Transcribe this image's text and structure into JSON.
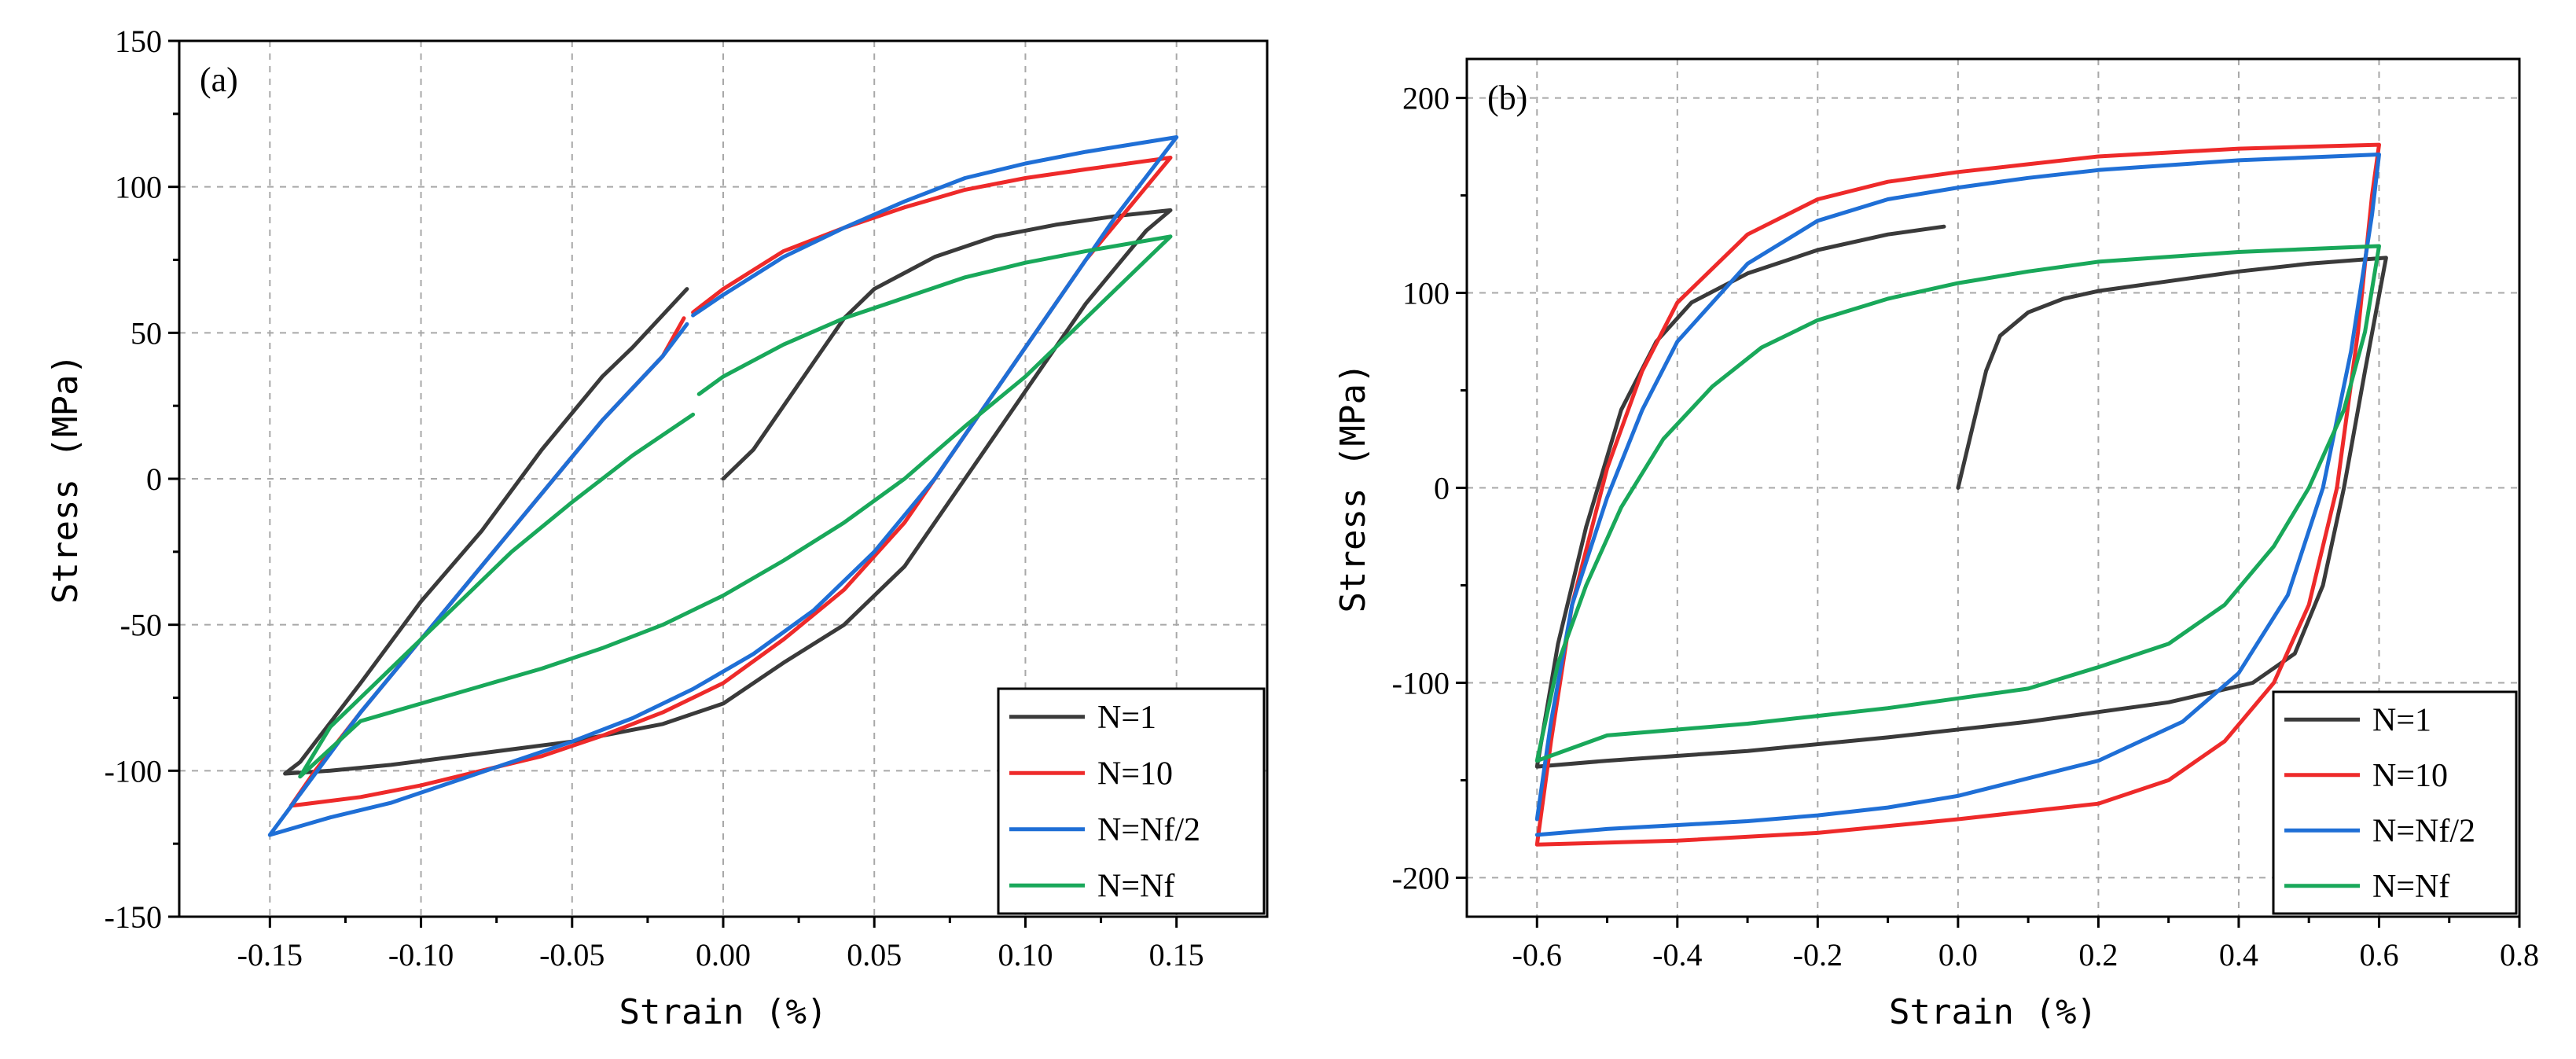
{
  "chart_data": [
    {
      "type": "line",
      "panel_label": "(a)",
      "xlabel": "Strain (%)",
      "ylabel": "Stress (MPa)",
      "xlim": [
        -0.18,
        0.18
      ],
      "ylim": [
        -150,
        150
      ],
      "xticks": [
        -0.15,
        -0.1,
        -0.05,
        0.0,
        0.05,
        0.1,
        0.15
      ],
      "xtick_labels": [
        "-0.15",
        "-0.10",
        "-0.05",
        "0.00",
        "0.05",
        "0.10",
        "0.15"
      ],
      "yticks": [
        -150,
        -100,
        -50,
        0,
        50,
        100,
        150
      ],
      "ytick_labels": [
        "-150",
        "-100",
        "-50",
        "0",
        "50",
        "100",
        "150"
      ],
      "grid": true,
      "legend_position": "bottom-right",
      "series": [
        {
          "name": "N=1",
          "color": "#3a3a3a",
          "points": [
            [
              0.0,
              0
            ],
            [
              0.01,
              10
            ],
            [
              0.02,
              25
            ],
            [
              0.03,
              40
            ],
            [
              0.04,
              55
            ],
            [
              0.05,
              65
            ],
            [
              0.07,
              76
            ],
            [
              0.09,
              83
            ],
            [
              0.11,
              87
            ],
            [
              0.13,
              90
            ],
            [
              0.148,
              92
            ],
            [
              0.14,
              85
            ],
            [
              0.12,
              60
            ],
            [
              0.1,
              30
            ],
            [
              0.08,
              0
            ],
            [
              0.06,
              -30
            ],
            [
              0.04,
              -50
            ],
            [
              0.02,
              -63
            ],
            [
              0.0,
              -77
            ],
            [
              -0.02,
              -84
            ],
            [
              -0.05,
              -90
            ],
            [
              -0.08,
              -94
            ],
            [
              -0.11,
              -98
            ],
            [
              -0.13,
              -100
            ],
            [
              -0.145,
              -101
            ],
            [
              -0.14,
              -97
            ],
            [
              -0.12,
              -70
            ],
            [
              -0.1,
              -42
            ],
            [
              -0.08,
              -18
            ],
            [
              -0.06,
              10
            ],
            [
              -0.04,
              35
            ],
            [
              -0.03,
              45
            ],
            [
              -0.012,
              65
            ]
          ]
        },
        {
          "name": "N=10",
          "color": "#ee2a2a",
          "points": [
            [
              -0.01,
              57
            ],
            [
              0.0,
              65
            ],
            [
              0.02,
              78
            ],
            [
              0.04,
              86
            ],
            [
              0.06,
              93
            ],
            [
              0.08,
              99
            ],
            [
              0.1,
              103
            ],
            [
              0.12,
              106
            ],
            [
              0.148,
              110
            ],
            [
              0.14,
              100
            ],
            [
              0.12,
              75
            ],
            [
              0.1,
              45
            ],
            [
              0.08,
              15
            ],
            [
              0.06,
              -15
            ],
            [
              0.04,
              -38
            ],
            [
              0.02,
              -55
            ],
            [
              0.0,
              -70
            ],
            [
              -0.02,
              -80
            ],
            [
              -0.04,
              -88
            ],
            [
              -0.06,
              -95
            ],
            [
              -0.08,
              -100
            ],
            [
              -0.1,
              -105
            ],
            [
              -0.12,
              -109
            ],
            [
              -0.143,
              -112
            ],
            [
              -0.135,
              -100
            ],
            [
              -0.12,
              -80
            ],
            [
              -0.1,
              -55
            ],
            [
              -0.08,
              -30
            ],
            [
              -0.06,
              -5
            ],
            [
              -0.04,
              20
            ],
            [
              -0.02,
              42
            ],
            [
              -0.013,
              55
            ]
          ]
        },
        {
          "name": "N=Nf/2",
          "color": "#1f6fd6",
          "points": [
            [
              -0.01,
              56
            ],
            [
              0.0,
              63
            ],
            [
              0.02,
              76
            ],
            [
              0.04,
              86
            ],
            [
              0.06,
              95
            ],
            [
              0.08,
              103
            ],
            [
              0.1,
              108
            ],
            [
              0.12,
              112
            ],
            [
              0.15,
              117
            ],
            [
              0.13,
              90
            ],
            [
              0.11,
              60
            ],
            [
              0.09,
              30
            ],
            [
              0.07,
              0
            ],
            [
              0.05,
              -25
            ],
            [
              0.03,
              -45
            ],
            [
              0.01,
              -60
            ],
            [
              -0.01,
              -72
            ],
            [
              -0.03,
              -82
            ],
            [
              -0.05,
              -90
            ],
            [
              -0.07,
              -97
            ],
            [
              -0.09,
              -104
            ],
            [
              -0.11,
              -111
            ],
            [
              -0.13,
              -116
            ],
            [
              -0.15,
              -122
            ],
            [
              -0.14,
              -108
            ],
            [
              -0.12,
              -80
            ],
            [
              -0.1,
              -55
            ],
            [
              -0.08,
              -30
            ],
            [
              -0.06,
              -5
            ],
            [
              -0.04,
              20
            ],
            [
              -0.02,
              42
            ],
            [
              -0.012,
              53
            ]
          ]
        },
        {
          "name": "N=Nf",
          "color": "#19a85a",
          "points": [
            [
              -0.008,
              29
            ],
            [
              0.0,
              35
            ],
            [
              0.02,
              46
            ],
            [
              0.04,
              55
            ],
            [
              0.06,
              62
            ],
            [
              0.08,
              69
            ],
            [
              0.1,
              74
            ],
            [
              0.12,
              78
            ],
            [
              0.148,
              83
            ],
            [
              0.14,
              75
            ],
            [
              0.12,
              55
            ],
            [
              0.1,
              35
            ],
            [
              0.08,
              18
            ],
            [
              0.06,
              0
            ],
            [
              0.04,
              -15
            ],
            [
              0.02,
              -28
            ],
            [
              0.0,
              -40
            ],
            [
              -0.02,
              -50
            ],
            [
              -0.04,
              -58
            ],
            [
              -0.06,
              -65
            ],
            [
              -0.08,
              -71
            ],
            [
              -0.1,
              -77
            ],
            [
              -0.12,
              -83
            ],
            [
              -0.14,
              -102
            ],
            [
              -0.13,
              -85
            ],
            [
              -0.11,
              -65
            ],
            [
              -0.09,
              -45
            ],
            [
              -0.07,
              -25
            ],
            [
              -0.05,
              -8
            ],
            [
              -0.03,
              8
            ],
            [
              -0.01,
              22
            ]
          ]
        }
      ]
    },
    {
      "type": "line",
      "panel_label": "(b)",
      "xlabel": "Strain (%)",
      "ylabel": "Stress (MPa)",
      "xlim": [
        -0.7,
        0.8
      ],
      "ylim": [
        -220,
        220
      ],
      "xticks": [
        -0.6,
        -0.4,
        -0.2,
        0.0,
        0.2,
        0.4,
        0.6,
        0.8
      ],
      "xtick_labels": [
        "-0.6",
        "-0.4",
        "-0.2",
        "0.0",
        "0.2",
        "0.4",
        "0.6",
        "0.8"
      ],
      "yticks": [
        -200,
        -100,
        0,
        100,
        200
      ],
      "ytick_labels": [
        "-200",
        "-100",
        "0",
        "100",
        "200"
      ],
      "grid": true,
      "legend_position": "bottom-right",
      "series": [
        {
          "name": "N=1",
          "color": "#3a3a3a",
          "points": [
            [
              0.0,
              0
            ],
            [
              0.02,
              30
            ],
            [
              0.04,
              60
            ],
            [
              0.06,
              78
            ],
            [
              0.1,
              90
            ],
            [
              0.15,
              97
            ],
            [
              0.2,
              101
            ],
            [
              0.3,
              106
            ],
            [
              0.4,
              111
            ],
            [
              0.5,
              115
            ],
            [
              0.61,
              118
            ],
            [
              0.58,
              60
            ],
            [
              0.55,
              0
            ],
            [
              0.52,
              -50
            ],
            [
              0.48,
              -85
            ],
            [
              0.42,
              -100
            ],
            [
              0.3,
              -110
            ],
            [
              0.1,
              -120
            ],
            [
              -0.1,
              -128
            ],
            [
              -0.3,
              -135
            ],
            [
              -0.5,
              -140
            ],
            [
              -0.6,
              -143
            ],
            [
              -0.57,
              -80
            ],
            [
              -0.53,
              -20
            ],
            [
              -0.48,
              40
            ],
            [
              -0.43,
              75
            ],
            [
              -0.38,
              95
            ],
            [
              -0.3,
              110
            ],
            [
              -0.2,
              122
            ],
            [
              -0.1,
              130
            ],
            [
              -0.02,
              134
            ]
          ]
        },
        {
          "name": "N=10",
          "color": "#ee2a2a",
          "points": [
            [
              -0.6,
              -183
            ],
            [
              -0.58,
              -130
            ],
            [
              -0.55,
              -60
            ],
            [
              -0.5,
              10
            ],
            [
              -0.45,
              60
            ],
            [
              -0.4,
              95
            ],
            [
              -0.3,
              130
            ],
            [
              -0.2,
              148
            ],
            [
              -0.1,
              157
            ],
            [
              0.0,
              162
            ],
            [
              0.1,
              166
            ],
            [
              0.2,
              170
            ],
            [
              0.4,
              174
            ],
            [
              0.6,
              176
            ],
            [
              0.59,
              150
            ],
            [
              0.57,
              80
            ],
            [
              0.54,
              0
            ],
            [
              0.5,
              -60
            ],
            [
              0.45,
              -100
            ],
            [
              0.38,
              -130
            ],
            [
              0.3,
              -150
            ],
            [
              0.2,
              -162
            ],
            [
              0.0,
              -170
            ],
            [
              -0.2,
              -177
            ],
            [
              -0.4,
              -181
            ],
            [
              -0.6,
              -183
            ]
          ]
        },
        {
          "name": "N=Nf/2",
          "color": "#1f6fd6",
          "points": [
            [
              -0.6,
              -170
            ],
            [
              -0.58,
              -120
            ],
            [
              -0.55,
              -60
            ],
            [
              -0.5,
              -5
            ],
            [
              -0.45,
              40
            ],
            [
              -0.4,
              75
            ],
            [
              -0.3,
              115
            ],
            [
              -0.2,
              137
            ],
            [
              -0.1,
              148
            ],
            [
              0.0,
              154
            ],
            [
              0.1,
              159
            ],
            [
              0.2,
              163
            ],
            [
              0.4,
              168
            ],
            [
              0.6,
              171
            ],
            [
              0.59,
              140
            ],
            [
              0.56,
              70
            ],
            [
              0.52,
              0
            ],
            [
              0.47,
              -55
            ],
            [
              0.4,
              -95
            ],
            [
              0.32,
              -120
            ],
            [
              0.2,
              -140
            ],
            [
              0.0,
              -158
            ],
            [
              -0.1,
              -164
            ],
            [
              -0.2,
              -168
            ],
            [
              -0.3,
              -171
            ],
            [
              -0.4,
              -173
            ],
            [
              -0.5,
              -175
            ],
            [
              -0.6,
              -178
            ]
          ]
        },
        {
          "name": "N=Nf",
          "color": "#19a85a",
          "points": [
            [
              -0.6,
              -140
            ],
            [
              -0.57,
              -90
            ],
            [
              -0.53,
              -50
            ],
            [
              -0.48,
              -10
            ],
            [
              -0.42,
              25
            ],
            [
              -0.35,
              52
            ],
            [
              -0.28,
              72
            ],
            [
              -0.2,
              86
            ],
            [
              -0.1,
              97
            ],
            [
              0.0,
              105
            ],
            [
              0.1,
              111
            ],
            [
              0.2,
              116
            ],
            [
              0.4,
              121
            ],
            [
              0.6,
              124
            ],
            [
              0.58,
              80
            ],
            [
              0.55,
              40
            ],
            [
              0.5,
              0
            ],
            [
              0.45,
              -30
            ],
            [
              0.38,
              -60
            ],
            [
              0.3,
              -80
            ],
            [
              0.2,
              -92
            ],
            [
              0.1,
              -103
            ],
            [
              0.0,
              -108
            ],
            [
              -0.1,
              -113
            ],
            [
              -0.2,
              -117
            ],
            [
              -0.3,
              -121
            ],
            [
              -0.4,
              -124
            ],
            [
              -0.5,
              -127
            ],
            [
              -0.6,
              -140
            ]
          ]
        }
      ]
    }
  ]
}
